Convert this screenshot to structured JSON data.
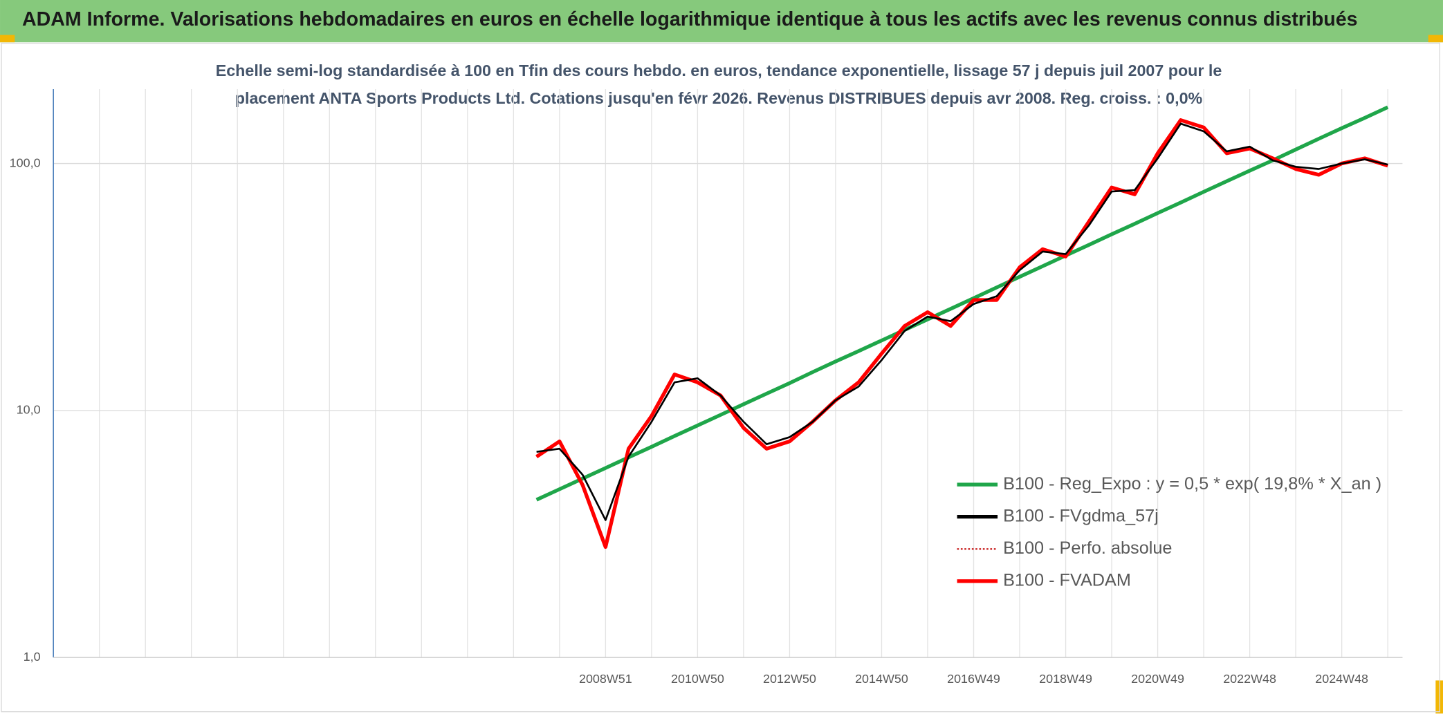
{
  "chart_data": {
    "type": "line",
    "header": "ADAM Informe. Valorisations hebdomadaires en euros en échelle logarithmique identique à tous les actifs avec les revenus connus distribués",
    "subtitle": [
      "Echelle semi-log standardisée à 100 en Tfin des cours hebdo. en euros, tendance exponentielle, lissage 57 j depuis juil 2007 pour le",
      "placement ANTA Sports Products Ltd. Cotations jusqu'en févr 2026. Revenus DISTRIBUES depuis avr 2008. Reg. croiss. : 0,0%"
    ],
    "categories": [
      null,
      null,
      null,
      null,
      null,
      null,
      null,
      null,
      null,
      null,
      null,
      null,
      null,
      null,
      null,
      null,
      null,
      null,
      null,
      null,
      null,
      null,
      null,
      null,
      "2008W51",
      null,
      null,
      null,
      "2010W50",
      null,
      null,
      null,
      "2012W50",
      null,
      null,
      null,
      "2014W50",
      null,
      null,
      null,
      "2016W49",
      null,
      null,
      null,
      "2018W49",
      null,
      null,
      null,
      "2020W49",
      null,
      null,
      null,
      "2022W48",
      null,
      null,
      null,
      "2024W48",
      null,
      null
    ],
    "log_scale": true,
    "ylim": [
      1,
      200
    ],
    "yticks": [
      {
        "value": 1,
        "label": "1,0"
      },
      {
        "value": 10,
        "label": "10,0"
      },
      {
        "value": 100,
        "label": "100,0"
      }
    ],
    "grid": true,
    "legend": "right",
    "series": [
      {
        "name": "B100 - Reg_Expo : y = 0,5 * exp( 19,8% *  X_an )",
        "color": "#1fa64a",
        "style": "solid",
        "values": [
          null,
          null,
          null,
          null,
          null,
          null,
          null,
          null,
          null,
          null,
          null,
          null,
          null,
          null,
          null,
          null,
          null,
          null,
          null,
          null,
          null,
          4.35,
          4.8,
          5.3,
          5.85,
          6.46,
          7.13,
          7.88,
          8.7,
          9.6,
          10.6,
          11.7,
          12.9,
          14.3,
          15.8,
          17.4,
          19.2,
          21.2,
          23.4,
          25.8,
          28.5,
          31.5,
          34.8,
          38.4,
          42.4,
          46.8,
          51.7,
          57,
          63,
          69.5,
          76.8,
          84.8,
          93.6,
          103,
          114,
          126,
          139,
          153,
          169
        ]
      },
      {
        "name": "B100 - FVgdma_57j",
        "color": "#000000",
        "style": "solid",
        "values": [
          null,
          null,
          null,
          null,
          null,
          null,
          null,
          null,
          null,
          null,
          null,
          null,
          null,
          null,
          null,
          null,
          null,
          null,
          null,
          null,
          null,
          6.8,
          7,
          5.5,
          3.6,
          6.5,
          9,
          13,
          13.5,
          11.5,
          9,
          7.3,
          7.8,
          9,
          11,
          12.5,
          16,
          21,
          24,
          23,
          27,
          29,
          37,
          44,
          43,
          56,
          77,
          78,
          105,
          145,
          135,
          112,
          117,
          103,
          97,
          95,
          100,
          104,
          99
        ]
      },
      {
        "name": "B100 - Perfo. absolue",
        "color": "#c00000",
        "style": "dotted",
        "values": [
          null,
          null,
          null,
          null,
          null,
          null,
          null,
          null,
          null,
          null,
          null,
          null,
          null,
          null,
          null,
          null,
          null,
          null,
          null,
          null,
          null,
          6.5,
          7.5,
          5,
          2.8,
          7,
          9.5,
          14,
          13,
          11.5,
          8.5,
          7,
          7.5,
          9,
          11,
          13,
          17,
          22,
          25,
          22,
          28,
          28,
          38,
          45,
          42,
          58,
          80,
          75,
          110,
          150,
          140,
          110,
          115,
          105,
          95,
          90,
          100,
          105,
          98
        ]
      },
      {
        "name": "B100 - FVADAM",
        "color": "#ff0000",
        "style": "solid",
        "values": [
          null,
          null,
          null,
          null,
          null,
          null,
          null,
          null,
          null,
          null,
          null,
          null,
          null,
          null,
          null,
          null,
          null,
          null,
          null,
          null,
          null,
          6.5,
          7.5,
          5,
          2.8,
          7,
          9.5,
          14,
          13,
          11.5,
          8.5,
          7,
          7.5,
          9,
          11,
          13,
          17,
          22,
          25,
          22,
          28,
          28,
          38,
          45,
          42,
          58,
          80,
          75,
          110,
          150,
          140,
          110,
          115,
          105,
          95,
          90,
          100,
          105,
          98
        ]
      }
    ]
  }
}
